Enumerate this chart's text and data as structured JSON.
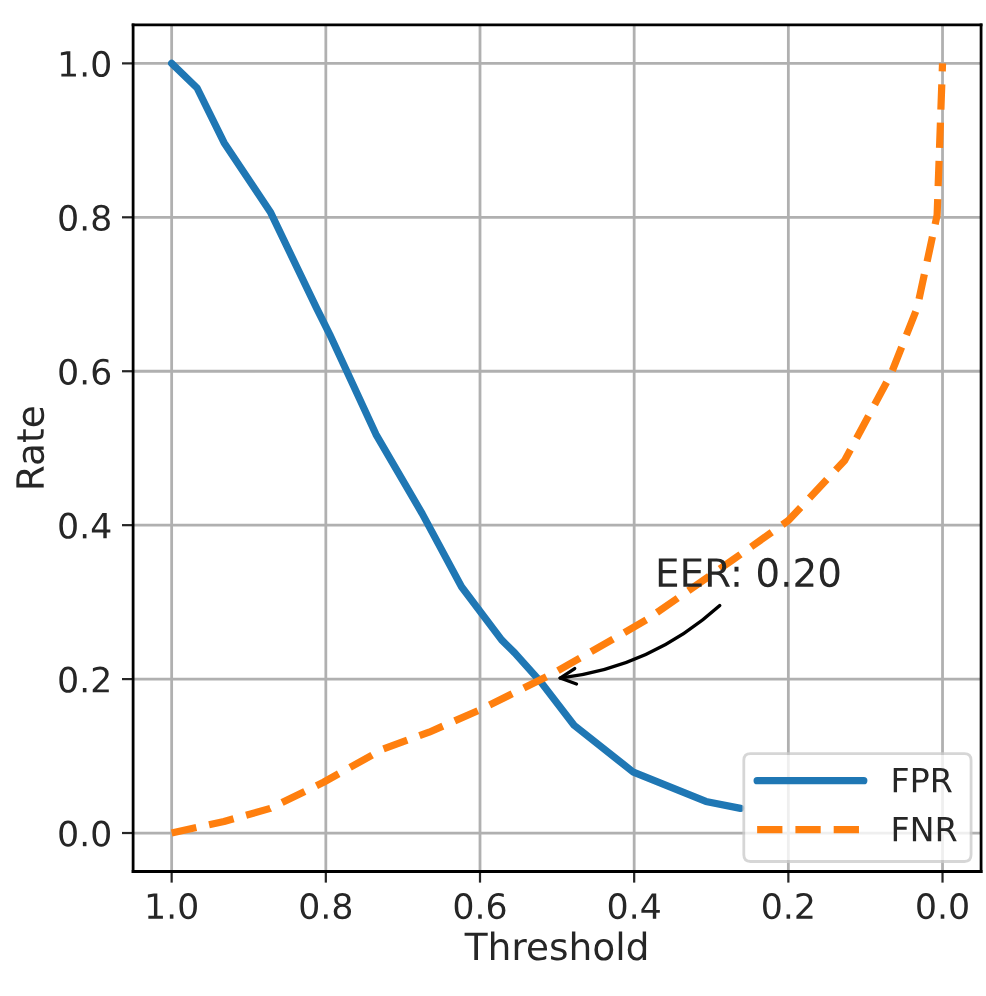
{
  "chart_data": {
    "type": "line",
    "xlabel": "Threshold",
    "ylabel": "Rate",
    "xlim": [
      1.05,
      -0.05
    ],
    "ylim": [
      -0.05,
      1.05
    ],
    "xticks": [
      {
        "value": 1.0,
        "label": "1.0"
      },
      {
        "value": 0.8,
        "label": "0.8"
      },
      {
        "value": 0.6,
        "label": "0.6"
      },
      {
        "value": 0.4,
        "label": "0.4"
      },
      {
        "value": 0.2,
        "label": "0.2"
      },
      {
        "value": 0.0,
        "label": "0.0"
      }
    ],
    "yticks": [
      {
        "value": 0.0,
        "label": "0.0"
      },
      {
        "value": 0.2,
        "label": "0.2"
      },
      {
        "value": 0.4,
        "label": "0.4"
      },
      {
        "value": 0.6,
        "label": "0.6"
      },
      {
        "value": 0.8,
        "label": "0.8"
      },
      {
        "value": 1.0,
        "label": "1.0"
      }
    ],
    "grid": true,
    "legend": "bottom right",
    "series": [
      {
        "name": "FPR",
        "color": "#1f77b4",
        "line_style": "solid",
        "x": [
          1.0,
          0.967,
          0.932,
          0.872,
          0.812,
          0.795,
          0.735,
          0.675,
          0.624,
          0.572,
          0.555,
          0.521,
          0.478,
          0.401,
          0.307,
          0.262
        ],
        "values": [
          1.0,
          0.968,
          0.897,
          0.807,
          0.682,
          0.648,
          0.518,
          0.415,
          0.32,
          0.251,
          0.234,
          0.196,
          0.14,
          0.079,
          0.041,
          0.032
        ]
      },
      {
        "name": "FNR",
        "color": "#ff7f0e",
        "line_style": "dashed",
        "x": [
          1.0,
          0.932,
          0.872,
          0.803,
          0.726,
          0.666,
          0.598,
          0.538,
          0.504,
          0.384,
          0.272,
          0.2,
          0.127,
          0.067,
          0.033,
          0.007,
          0.0
        ],
        "values": [
          0.0,
          0.015,
          0.032,
          0.066,
          0.109,
          0.131,
          0.161,
          0.191,
          0.208,
          0.277,
          0.355,
          0.406,
          0.484,
          0.596,
          0.682,
          0.803,
          1.0
        ]
      }
    ],
    "annotations": [
      {
        "text": "EER: 0.20",
        "x": 0.508,
        "y": 0.2
      }
    ]
  }
}
